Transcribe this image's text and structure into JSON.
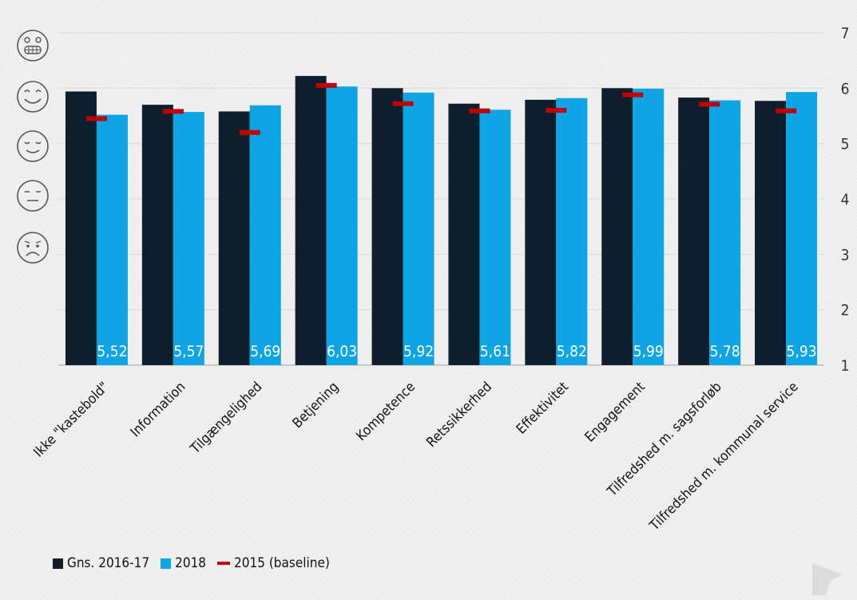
{
  "chart_data": {
    "type": "bar",
    "categories": [
      "Ikke \"kastebold\"",
      "Information",
      "Tilgængelighed",
      "Betjening",
      "Kompetence",
      "Retssikkerhed",
      "Effektivitet",
      "Engagement",
      "Tilfredshed m. sagsforløb",
      "Tilfredshed m. kommunal service"
    ],
    "series": [
      {
        "name": "Gns. 2016-17",
        "color": "#0d1e2c",
        "values": [
          5.94,
          5.7,
          5.58,
          6.22,
          6.0,
          5.72,
          5.79,
          6.0,
          5.83,
          5.77
        ]
      },
      {
        "name": "2018",
        "color": "#0ea5e6",
        "values": [
          5.52,
          5.57,
          5.69,
          6.03,
          5.92,
          5.61,
          5.82,
          5.99,
          5.78,
          5.93
        ],
        "labels": [
          "5,52",
          "5,57",
          "5,69",
          "6,03",
          "5,92",
          "5,61",
          "5,82",
          "5,99",
          "5,78",
          "5,93"
        ]
      },
      {
        "name": "2015 (baseline)",
        "color": "#c00000",
        "marker": "dash",
        "values": [
          5.45,
          5.58,
          5.2,
          6.05,
          5.72,
          5.59,
          5.6,
          5.88,
          5.71,
          5.59
        ]
      }
    ],
    "ylim": [
      1,
      7
    ],
    "yticks": [
      1,
      2,
      3,
      4,
      5,
      6,
      7
    ],
    "y_axis_side": "right",
    "grid": true,
    "legend_position": "bottom-left",
    "left_scale_icons": [
      "grinning-face-icon",
      "smiling-face-icon",
      "relieved-face-icon",
      "unamused-face-icon",
      "frowning-face-icon"
    ]
  }
}
